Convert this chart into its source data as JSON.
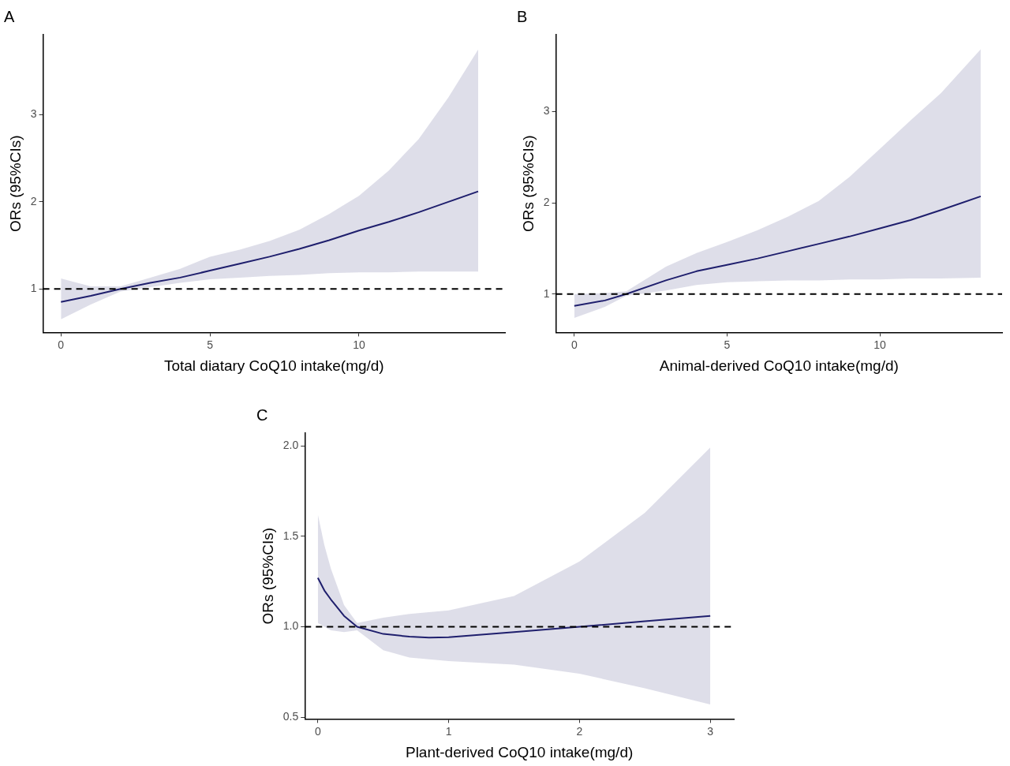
{
  "chart_data": [
    {
      "type": "line",
      "title": "A",
      "xlabel": "Total diatary CoQ10 intake(mg/d)",
      "ylabel": "ORs (95%CIs)",
      "xlim": [
        -0.6,
        14.9
      ],
      "ylim": [
        0.5,
        3.92
      ],
      "xticks": [
        0,
        5,
        10
      ],
      "yticks": [
        1,
        2,
        3
      ],
      "grid": false,
      "legend": false,
      "marker": "none",
      "line_style": "solid",
      "x": [
        0,
        1,
        2,
        3,
        4,
        5,
        6,
        7,
        8,
        9,
        10,
        11,
        12,
        13,
        14
      ],
      "series": [
        {
          "color": "#1f1f6e",
          "values": [
            0.85,
            0.92,
            1.0,
            1.07,
            1.13,
            1.21,
            1.29,
            1.37,
            1.46,
            1.56,
            1.67,
            1.77,
            1.88,
            2.0,
            2.12
          ],
          "lower": [
            0.65,
            0.82,
            0.97,
            1.02,
            1.07,
            1.11,
            1.13,
            1.15,
            1.16,
            1.18,
            1.19,
            1.19,
            1.2,
            1.2,
            1.2
          ],
          "upper": [
            1.12,
            1.03,
            1.03,
            1.13,
            1.23,
            1.37,
            1.45,
            1.55,
            1.68,
            1.86,
            2.07,
            2.36,
            2.72,
            3.2,
            3.75
          ]
        }
      ],
      "ref_lines": [
        {
          "axis": "y",
          "value": 1,
          "line_style": "dashed",
          "color": "#000000"
        }
      ]
    },
    {
      "type": "line",
      "title": "B",
      "xlabel": "Animal-derived CoQ10 intake(mg/d)",
      "ylabel": "ORs (95%CIs)",
      "xlim": [
        -0.6,
        14.0
      ],
      "ylim": [
        0.58,
        3.84
      ],
      "xticks": [
        0,
        5,
        10
      ],
      "yticks": [
        1,
        2,
        3
      ],
      "grid": false,
      "legend": false,
      "marker": "none",
      "line_style": "solid",
      "x": [
        0,
        1,
        1.7,
        3,
        4,
        5,
        6,
        7,
        8,
        9,
        10,
        11,
        12,
        13.3
      ],
      "series": [
        {
          "color": "#1f1f6e",
          "values": [
            0.87,
            0.93,
            1.0,
            1.15,
            1.25,
            1.32,
            1.39,
            1.47,
            1.55,
            1.63,
            1.72,
            1.81,
            1.92,
            2.07
          ],
          "lower": [
            0.74,
            0.86,
            0.98,
            1.04,
            1.1,
            1.13,
            1.14,
            1.15,
            1.15,
            1.16,
            1.16,
            1.17,
            1.17,
            1.18
          ],
          "upper": [
            1.0,
            1.01,
            1.03,
            1.3,
            1.45,
            1.57,
            1.7,
            1.85,
            2.02,
            2.28,
            2.59,
            2.9,
            3.2,
            3.68
          ]
        }
      ],
      "ref_lines": [
        {
          "axis": "y",
          "value": 1,
          "line_style": "dashed",
          "color": "#000000"
        }
      ]
    },
    {
      "type": "line",
      "title": "C",
      "xlabel": "Plant-derived CoQ10 intake(mg/d)",
      "ylabel": "ORs (95%CIs)",
      "xlim": [
        -0.1,
        3.18
      ],
      "ylim": [
        0.49,
        2.07
      ],
      "xticks": [
        0,
        1,
        2,
        3
      ],
      "yticks": [
        {
          "value": 0.5,
          "label": "0.5"
        },
        {
          "value": 1,
          "label": "1.0"
        },
        {
          "value": 1.5,
          "label": "1.5"
        },
        {
          "value": 2,
          "label": "2.0"
        }
      ],
      "grid": false,
      "legend": false,
      "marker": "none",
      "line_style": "solid",
      "x": [
        0,
        0.05,
        0.1,
        0.2,
        0.3,
        0.5,
        0.7,
        0.85,
        1.0,
        1.5,
        2.0,
        2.5,
        3.0
      ],
      "series": [
        {
          "color": "#1f1f6e",
          "values": [
            1.27,
            1.2,
            1.15,
            1.06,
            1.0,
            0.96,
            0.945,
            0.94,
            0.942,
            0.97,
            1.0,
            1.03,
            1.06
          ],
          "lower": [
            1.02,
            1.0,
            0.98,
            0.97,
            0.98,
            0.87,
            0.83,
            0.82,
            0.81,
            0.79,
            0.74,
            0.66,
            0.57
          ],
          "upper": [
            1.62,
            1.45,
            1.32,
            1.12,
            1.02,
            1.05,
            1.07,
            1.08,
            1.09,
            1.17,
            1.36,
            1.63,
            1.99
          ]
        }
      ],
      "ref_lines": [
        {
          "axis": "y",
          "value": 1,
          "line_style": "dashed",
          "color": "#000000"
        }
      ]
    }
  ]
}
